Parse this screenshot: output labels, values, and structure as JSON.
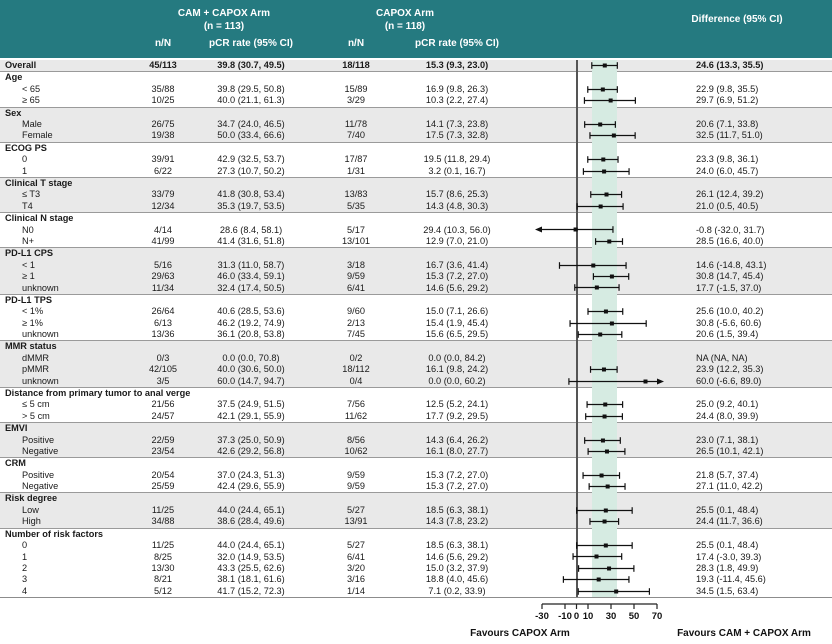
{
  "header": {
    "arm1_title": "CAM + CAPOX Arm",
    "arm1_n": "(n = 113)",
    "arm2_title": "CAPOX Arm",
    "arm2_n": "(n = 118)",
    "col_nN": "n/N",
    "col_rate": "pCR rate (95% CI)",
    "col_diff": "Difference (95% CI)"
  },
  "colors": {
    "header_bg": "#257a80",
    "stripe": "#e9e9e9",
    "band": "#d6ebe2",
    "zero_line": "#555555",
    "text": "#1a1a1a"
  },
  "chart_data": {
    "type": "forest",
    "x_axis": {
      "min": -30,
      "max": 70,
      "ticks": [
        -30,
        -10,
        0,
        10,
        30,
        50,
        70
      ]
    },
    "shaded_band": [
      13.3,
      35.5
    ],
    "footer": {
      "left": "Favours CAPOX Arm",
      "right": "Favours CAM + CAPOX Arm"
    },
    "row_format": [
      "subgroup",
      "cam_nN",
      "cam_pCR_rate_95CI",
      "capox_nN",
      "capox_pCR_rate_95CI",
      "difference_95CI_text",
      "diff_est",
      "diff_lo",
      "diff_hi"
    ],
    "sections": [
      {
        "name": null,
        "rows": [
          [
            "Overall",
            "45/113",
            "39.8 (30.7, 49.5)",
            "18/118",
            "15.3 (9.3, 23.0)",
            "24.6 (13.3, 35.5)",
            24.6,
            13.3,
            35.5
          ]
        ]
      },
      {
        "name": "Age",
        "rows": [
          [
            "< 65",
            "35/88",
            "39.8 (29.5, 50.8)",
            "15/89",
            "16.9 (9.8, 26.3)",
            "22.9 (9.8, 35.5)",
            22.9,
            9.8,
            35.5
          ],
          [
            "≥ 65",
            "10/25",
            "40.0 (21.1, 61.3)",
            "3/29",
            "10.3 (2.2, 27.4)",
            "29.7 (6.9, 51.2)",
            29.7,
            6.9,
            51.2
          ]
        ]
      },
      {
        "name": "Sex",
        "rows": [
          [
            "Male",
            "26/75",
            "34.7 (24.0, 46.5)",
            "11/78",
            "14.1 (7.3, 23.8)",
            "20.6 (7.1, 33.8)",
            20.6,
            7.1,
            33.8
          ],
          [
            "Female",
            "19/38",
            "50.0 (33.4, 66.6)",
            "7/40",
            "17.5 (7.3, 32.8)",
            "32.5 (11.7, 51.0)",
            32.5,
            11.7,
            51.0
          ]
        ]
      },
      {
        "name": "ECOG PS",
        "rows": [
          [
            "0",
            "39/91",
            "42.9 (32.5, 53.7)",
            "17/87",
            "19.5 (11.8, 29.4)",
            "23.3 (9.8, 36.1)",
            23.3,
            9.8,
            36.1
          ],
          [
            "1",
            "6/22",
            "27.3 (10.7, 50.2)",
            "1/31",
            "3.2 (0.1, 16.7)",
            "24.0 (6.0, 45.7)",
            24.0,
            6.0,
            45.7
          ]
        ]
      },
      {
        "name": "Clinical T stage",
        "rows": [
          [
            "≤ T3",
            "33/79",
            "41.8 (30.8, 53.4)",
            "13/83",
            "15.7 (8.6, 25.3)",
            "26.1 (12.4, 39.2)",
            26.1,
            12.4,
            39.2
          ],
          [
            "T4",
            "12/34",
            "35.3 (19.7, 53.5)",
            "5/35",
            "14.3 (4.8, 30.3)",
            "21.0 (0.5, 40.5)",
            21.0,
            0.5,
            40.5
          ]
        ]
      },
      {
        "name": "Clinical N stage",
        "rows": [
          [
            "N0",
            "4/14",
            "28.6 (8.4, 58.1)",
            "5/17",
            "29.4 (10.3, 56.0)",
            "-0.8 (-32.0, 31.7)",
            -0.8,
            -32.0,
            31.7
          ],
          [
            "N+",
            "41/99",
            "41.4 (31.6, 51.8)",
            "13/101",
            "12.9 (7.0, 21.0)",
            "28.5 (16.6, 40.0)",
            28.5,
            16.6,
            40.0
          ]
        ]
      },
      {
        "name": "PD-L1 CPS",
        "rows": [
          [
            "< 1",
            "5/16",
            "31.3 (11.0, 58.7)",
            "3/18",
            "16.7 (3.6, 41.4)",
            "14.6 (-14.8, 43.1)",
            14.6,
            -14.8,
            43.1
          ],
          [
            "≥ 1",
            "29/63",
            "46.0 (33.4, 59.1)",
            "9/59",
            "15.3 (7.2, 27.0)",
            "30.8 (14.7, 45.4)",
            30.8,
            14.7,
            45.4
          ],
          [
            "unknown",
            "11/34",
            "32.4 (17.4, 50.5)",
            "6/41",
            "14.6 (5.6, 29.2)",
            "17.7 (-1.5, 37.0)",
            17.7,
            -1.5,
            37.0
          ]
        ]
      },
      {
        "name": "PD-L1 TPS",
        "rows": [
          [
            "< 1%",
            "26/64",
            "40.6 (28.5, 53.6)",
            "9/60",
            "15.0 (7.1, 26.6)",
            "25.6 (10.0, 40.2)",
            25.6,
            10.0,
            40.2
          ],
          [
            "≥ 1%",
            "6/13",
            "46.2 (19.2, 74.9)",
            "2/13",
            "15.4 (1.9, 45.4)",
            "30.8 (-5.6, 60.6)",
            30.8,
            -5.6,
            60.6
          ],
          [
            "unknown",
            "13/36",
            "36.1 (20.8, 53.8)",
            "7/45",
            "15.6 (6.5, 29.5)",
            "20.6 (1.5, 39.4)",
            20.6,
            1.5,
            39.4
          ]
        ]
      },
      {
        "name": "MMR status",
        "rows": [
          [
            "dMMR",
            "0/3",
            "0.0 (0.0, 70.8)",
            "0/2",
            "0.0 (0.0, 84.2)",
            "NA (NA, NA)",
            null,
            null,
            null
          ],
          [
            "pMMR",
            "42/105",
            "40.0 (30.6, 50.0)",
            "18/112",
            "16.1 (9.8, 24.2)",
            "23.9 (12.2, 35.3)",
            23.9,
            12.2,
            35.3
          ],
          [
            "unknown",
            "3/5",
            "60.0 (14.7, 94.7)",
            "0/4",
            "0.0 (0.0, 60.2)",
            "60.0 (-6.6, 89.0)",
            60.0,
            -6.6,
            89.0
          ]
        ]
      },
      {
        "name": "Distance from primary tumor to anal verge",
        "rows": [
          [
            "≤ 5 cm",
            "21/56",
            "37.5 (24.9, 51.5)",
            "7/56",
            "12.5 (5.2, 24.1)",
            "25.0 (9.2, 40.1)",
            25.0,
            9.2,
            40.1
          ],
          [
            "> 5 cm",
            "24/57",
            "42.1 (29.1, 55.9)",
            "11/62",
            "17.7 (9.2, 29.5)",
            "24.4 (8.0, 39.9)",
            24.4,
            8.0,
            39.9
          ]
        ]
      },
      {
        "name": "EMVI",
        "rows": [
          [
            "Positive",
            "22/59",
            "37.3 (25.0, 50.9)",
            "8/56",
            "14.3 (6.4, 26.2)",
            "23.0 (7.1, 38.1)",
            23.0,
            7.1,
            38.1
          ],
          [
            "Negative",
            "23/54",
            "42.6 (29.2, 56.8)",
            "10/62",
            "16.1 (8.0, 27.7)",
            "26.5 (10.1, 42.1)",
            26.5,
            10.1,
            42.1
          ]
        ]
      },
      {
        "name": "CRM",
        "rows": [
          [
            "Positive",
            "20/54",
            "37.0 (24.3, 51.3)",
            "9/59",
            "15.3 (7.2, 27.0)",
            "21.8 (5.7, 37.4)",
            21.8,
            5.7,
            37.4
          ],
          [
            "Negative",
            "25/59",
            "42.4 (29.6, 55.9)",
            "9/59",
            "15.3 (7.2, 27.0)",
            "27.1 (11.0, 42.2)",
            27.1,
            11.0,
            42.2
          ]
        ]
      },
      {
        "name": "Risk degree",
        "rows": [
          [
            "Low",
            "11/25",
            "44.0 (24.4, 65.1)",
            "5/27",
            "18.5 (6.3, 38.1)",
            "25.5 (0.1, 48.4)",
            25.5,
            0.1,
            48.4
          ],
          [
            "High",
            "34/88",
            "38.6 (28.4, 49.6)",
            "13/91",
            "14.3 (7.8, 23.2)",
            "24.4 (11.7, 36.6)",
            24.4,
            11.7,
            36.6
          ]
        ]
      },
      {
        "name": "Number of risk factors",
        "rows": [
          [
            "0",
            "11/25",
            "44.0 (24.4, 65.1)",
            "5/27",
            "18.5 (6.3, 38.1)",
            "25.5 (0.1, 48.4)",
            25.5,
            0.1,
            48.4
          ],
          [
            "1",
            "8/25",
            "32.0 (14.9, 53.5)",
            "6/41",
            "14.6 (5.6, 29.2)",
            "17.4 (-3.0, 39.3)",
            17.4,
            -3.0,
            39.3
          ],
          [
            "2",
            "13/30",
            "43.3 (25.5, 62.6)",
            "3/20",
            "15.0 (3.2, 37.9)",
            "28.3 (1.8, 49.9)",
            28.3,
            1.8,
            49.9
          ],
          [
            "3",
            "8/21",
            "38.1 (18.1, 61.6)",
            "3/16",
            "18.8 (4.0, 45.6)",
            "19.3 (-11.4, 45.6)",
            19.3,
            -11.4,
            45.6
          ],
          [
            "4",
            "5/12",
            "41.7 (15.2, 72.3)",
            "1/14",
            "7.1 (0.2, 33.9)",
            "34.5 (1.5, 63.4)",
            34.5,
            1.5,
            63.4
          ]
        ]
      }
    ]
  }
}
